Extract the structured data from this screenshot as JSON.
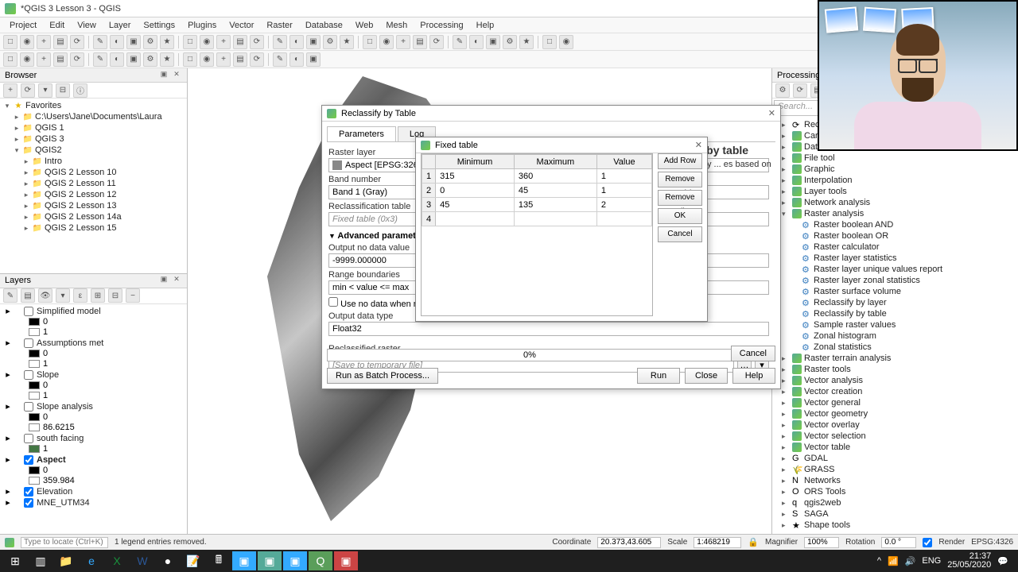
{
  "window": {
    "title": "*QGIS 3 Lesson 3 - QGIS",
    "close": "✕"
  },
  "menus": [
    "Project",
    "Edit",
    "View",
    "Layer",
    "Settings",
    "Plugins",
    "Vector",
    "Raster",
    "Database",
    "Web",
    "Mesh",
    "Processing",
    "Help"
  ],
  "browser": {
    "title": "Browser",
    "items": [
      {
        "indent": 0,
        "exp": "▾",
        "icon": "★",
        "cls": "star-yellow",
        "label": "Favorites"
      },
      {
        "indent": 1,
        "exp": "▸",
        "icon": "📁",
        "cls": "folder",
        "label": "C:\\Users\\Jane\\Documents\\Laura"
      },
      {
        "indent": 1,
        "exp": "▸",
        "icon": "📁",
        "cls": "folder",
        "label": "QGIS 1"
      },
      {
        "indent": 1,
        "exp": "▸",
        "icon": "📁",
        "cls": "folder",
        "label": "QGIS 3"
      },
      {
        "indent": 1,
        "exp": "▾",
        "icon": "📁",
        "cls": "folder",
        "label": "QGIS2"
      },
      {
        "indent": 2,
        "exp": "▸",
        "icon": "📁",
        "cls": "folder",
        "label": "Intro"
      },
      {
        "indent": 2,
        "exp": "▸",
        "icon": "📁",
        "cls": "folder",
        "label": "QGIS 2 Lesson 10"
      },
      {
        "indent": 2,
        "exp": "▸",
        "icon": "📁",
        "cls": "folder",
        "label": "QGIS 2 Lesson 11"
      },
      {
        "indent": 2,
        "exp": "▸",
        "icon": "📁",
        "cls": "folder",
        "label": "QGIS 2 Lesson 12"
      },
      {
        "indent": 2,
        "exp": "▸",
        "icon": "📁",
        "cls": "folder",
        "label": "QGIS 2 Lesson 13"
      },
      {
        "indent": 2,
        "exp": "▸",
        "icon": "📁",
        "cls": "folder",
        "label": "QGIS 2 Lesson 14a"
      },
      {
        "indent": 2,
        "exp": "▸",
        "icon": "📁",
        "cls": "folder",
        "label": "QGIS 2 Lesson 15"
      }
    ]
  },
  "layers": {
    "title": "Layers",
    "items": [
      {
        "type": "group",
        "checked": false,
        "label": "Simplified model",
        "bold": false
      },
      {
        "type": "sub",
        "swatch": "#000000",
        "label": "0"
      },
      {
        "type": "sub",
        "swatch": "#ffffff",
        "label": "1"
      },
      {
        "type": "group",
        "checked": false,
        "label": "Assumptions met",
        "bold": false
      },
      {
        "type": "sub",
        "swatch": "#000000",
        "label": "0"
      },
      {
        "type": "sub",
        "swatch": "#ffffff",
        "label": "1"
      },
      {
        "type": "group",
        "checked": false,
        "label": "Slope",
        "bold": false
      },
      {
        "type": "sub",
        "swatch": "#000000",
        "label": "0"
      },
      {
        "type": "sub",
        "swatch": "#ffffff",
        "label": "1"
      },
      {
        "type": "group",
        "checked": false,
        "label": "Slope analysis",
        "bold": false
      },
      {
        "type": "sub",
        "swatch": "#000000",
        "label": "0"
      },
      {
        "type": "sub",
        "swatch": "#ffffff",
        "label": "86.6215"
      },
      {
        "type": "group",
        "checked": false,
        "label": "south facing",
        "bold": false
      },
      {
        "type": "sub",
        "swatch": "#447744",
        "label": "1"
      },
      {
        "type": "group",
        "checked": true,
        "label": "Aspect",
        "bold": true
      },
      {
        "type": "sub",
        "swatch": "#000000",
        "label": "0"
      },
      {
        "type": "sub",
        "swatch": "#ffffff",
        "label": "359.984"
      },
      {
        "type": "group",
        "checked": true,
        "label": "Elevation",
        "bold": false
      },
      {
        "type": "group",
        "checked": true,
        "label": "MNE_UTM34",
        "bold": false
      }
    ]
  },
  "toolbox": {
    "title": "Processing Toolbox",
    "search_placeholder": "Search...",
    "items": [
      {
        "lvl": 0,
        "exp": "▸",
        "icon": "⟳",
        "label": "Recently"
      },
      {
        "lvl": 0,
        "exp": "▸",
        "icon": "Q",
        "label": "Cartogr"
      },
      {
        "lvl": 0,
        "exp": "▸",
        "icon": "Q",
        "label": "Databas"
      },
      {
        "lvl": 0,
        "exp": "▸",
        "icon": "Q",
        "label": "File tool"
      },
      {
        "lvl": 0,
        "exp": "▸",
        "icon": "Q",
        "label": "Graphic"
      },
      {
        "lvl": 0,
        "exp": "▸",
        "icon": "Q",
        "label": "Interpolation"
      },
      {
        "lvl": 0,
        "exp": "▸",
        "icon": "Q",
        "label": "Layer tools"
      },
      {
        "lvl": 0,
        "exp": "▸",
        "icon": "Q",
        "label": "Network analysis"
      },
      {
        "lvl": 0,
        "exp": "▾",
        "icon": "Q",
        "label": "Raster analysis"
      },
      {
        "lvl": 1,
        "icon": "⚙",
        "cls": "gear-blue",
        "label": "Raster boolean AND"
      },
      {
        "lvl": 1,
        "icon": "⚙",
        "cls": "gear-blue",
        "label": "Raster boolean OR"
      },
      {
        "lvl": 1,
        "icon": "⚙",
        "cls": "gear-blue",
        "label": "Raster calculator"
      },
      {
        "lvl": 1,
        "icon": "⚙",
        "cls": "gear-blue",
        "label": "Raster layer statistics"
      },
      {
        "lvl": 1,
        "icon": "⚙",
        "cls": "gear-blue",
        "label": "Raster layer unique values report"
      },
      {
        "lvl": 1,
        "icon": "⚙",
        "cls": "gear-blue",
        "label": "Raster layer zonal statistics"
      },
      {
        "lvl": 1,
        "icon": "⚙",
        "cls": "gear-blue",
        "label": "Raster surface volume"
      },
      {
        "lvl": 1,
        "icon": "⚙",
        "cls": "gear-blue",
        "label": "Reclassify by layer"
      },
      {
        "lvl": 1,
        "icon": "⚙",
        "cls": "gear-blue",
        "label": "Reclassify by table"
      },
      {
        "lvl": 1,
        "icon": "⚙",
        "cls": "gear-blue",
        "label": "Sample raster values"
      },
      {
        "lvl": 1,
        "icon": "⚙",
        "cls": "gear-blue",
        "label": "Zonal histogram"
      },
      {
        "lvl": 1,
        "icon": "⚙",
        "cls": "gear-blue",
        "label": "Zonal statistics"
      },
      {
        "lvl": 0,
        "exp": "▸",
        "icon": "Q",
        "label": "Raster terrain analysis"
      },
      {
        "lvl": 0,
        "exp": "▸",
        "icon": "Q",
        "label": "Raster tools"
      },
      {
        "lvl": 0,
        "exp": "▸",
        "icon": "Q",
        "label": "Vector analysis"
      },
      {
        "lvl": 0,
        "exp": "▸",
        "icon": "Q",
        "label": "Vector creation"
      },
      {
        "lvl": 0,
        "exp": "▸",
        "icon": "Q",
        "label": "Vector general"
      },
      {
        "lvl": 0,
        "exp": "▸",
        "icon": "Q",
        "label": "Vector geometry"
      },
      {
        "lvl": 0,
        "exp": "▸",
        "icon": "Q",
        "label": "Vector overlay"
      },
      {
        "lvl": 0,
        "exp": "▸",
        "icon": "Q",
        "label": "Vector selection"
      },
      {
        "lvl": 0,
        "exp": "▸",
        "icon": "Q",
        "label": "Vector table"
      },
      {
        "lvl": 0,
        "exp": "▸",
        "icon": "G",
        "label": "GDAL"
      },
      {
        "lvl": 0,
        "exp": "▸",
        "icon": "🌾",
        "label": "GRASS"
      },
      {
        "lvl": 0,
        "exp": "▸",
        "icon": "N",
        "label": "Networks"
      },
      {
        "lvl": 0,
        "exp": "▸",
        "icon": "O",
        "label": "ORS Tools"
      },
      {
        "lvl": 0,
        "exp": "▸",
        "icon": "q",
        "label": "qgis2web"
      },
      {
        "lvl": 0,
        "exp": "▸",
        "icon": "S",
        "label": "SAGA"
      },
      {
        "lvl": 0,
        "exp": "▸",
        "icon": "★",
        "label": "Shape tools"
      }
    ]
  },
  "reclass_dialog": {
    "title": "Reclassify by Table",
    "tabs": [
      "Parameters",
      "Log"
    ],
    "labels": {
      "raster_layer": "Raster layer",
      "band_number": "Band number",
      "reclass_table": "Reclassification table",
      "adv": "Advanced parameters",
      "nodata": "Output no data value",
      "range": "Range boundaries",
      "use_nodata": "Use no data when no range",
      "out_type": "Output data type",
      "out_raster": "Reclassified raster"
    },
    "values": {
      "raster_layer": "Aspect [EPSG:32634]",
      "band": "Band 1 (Gray)",
      "table": "Fixed table (0x3)",
      "nodata": "-9999.000000",
      "range": "min < value <= max",
      "out_type": "Float32",
      "out_raster": "[Save to temporary file]"
    },
    "right": {
      "title": "Reclassify by table",
      "desc": "a raster band by ... es based on the ranges"
    },
    "progress": "0%",
    "buttons": {
      "batch": "Run as Batch Process...",
      "run": "Run",
      "close": "Close",
      "help": "Help",
      "cancel": "Cancel"
    }
  },
  "fixed_table": {
    "title": "Fixed table",
    "columns": [
      "Minimum",
      "Maximum",
      "Value"
    ],
    "rows": [
      [
        "315",
        "360",
        "1"
      ],
      [
        "0",
        "45",
        "1"
      ],
      [
        "45",
        "135",
        "2"
      ],
      [
        "",
        "",
        ""
      ]
    ],
    "buttons": {
      "add": "Add Row",
      "remove": "Remove Row(s)",
      "remove_all": "Remove All",
      "ok": "OK",
      "cancel": "Cancel"
    }
  },
  "statusbar": {
    "locator_placeholder": "Type to locate (Ctrl+K)",
    "msg": "1 legend entries removed.",
    "coord_label": "Coordinate",
    "coord": "20.373,43.605",
    "scale_label": "Scale",
    "scale": "1:468219",
    "mag_label": "Magnifier",
    "mag": "100%",
    "rot_label": "Rotation",
    "rot": "0.0 °",
    "render": "Render",
    "crs": "EPSG:4326"
  },
  "taskbar": {
    "time": "21:37",
    "date": "25/05/2020",
    "lang": "ENG"
  }
}
